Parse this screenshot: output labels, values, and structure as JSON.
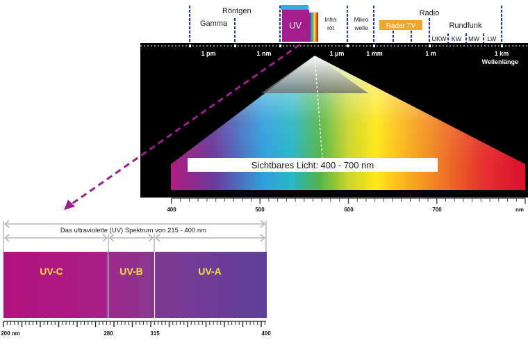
{
  "spectrum_bands": [
    {
      "label": "Gamma",
      "color": ""
    },
    {
      "label": "Röntgen",
      "color": ""
    },
    {
      "label": "UV",
      "color": "#a51c8c"
    },
    {
      "label": "Infra",
      "color": ""
    },
    {
      "label": "rot",
      "color": ""
    },
    {
      "label": "Mikro",
      "color": ""
    },
    {
      "label": "welle",
      "color": ""
    },
    {
      "label": "Radio",
      "color": ""
    },
    {
      "label": "Radar TV",
      "color": "#f2a52a"
    },
    {
      "label": "Rundfunk",
      "color": ""
    },
    {
      "label": "UKW",
      "color": ""
    },
    {
      "label": "KW",
      "color": ""
    },
    {
      "label": "MW",
      "color": ""
    },
    {
      "label": "LW",
      "color": ""
    }
  ],
  "wavelength_scale": {
    "ticks": [
      "1 pm",
      "1 nm",
      "1 µm",
      "1 mm",
      "1 m",
      "1 km"
    ],
    "axis_label": "Wellenlänge"
  },
  "visible": {
    "banner": "Sichtbares Licht: 400 - 700 nm",
    "ticks": [
      "400",
      "500",
      "600",
      "700",
      "nm"
    ]
  },
  "uv_spectrum": {
    "title": "Das ultraviolette (UV) Spektrum von 215 - 400 nm",
    "segments": [
      {
        "label": "UV-C",
        "color": "#b0157f"
      },
      {
        "label": "UV-B",
        "color": "#91338e"
      },
      {
        "label": "UV-A",
        "color": "#6e3a95"
      }
    ],
    "ticks": [
      "200 nm",
      "280",
      "315",
      "400"
    ]
  },
  "colors": {
    "accent_label": "#f7e23c",
    "arrow": "#9c1f90",
    "marker": "#2b3b8f"
  }
}
